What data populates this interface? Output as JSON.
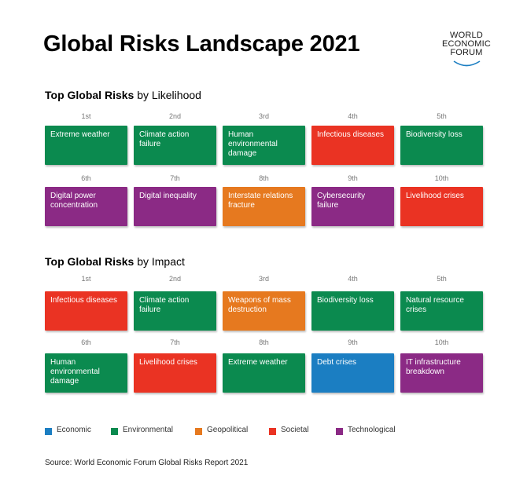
{
  "title": "Global Risks Landscape 2021",
  "logo": {
    "line1": "WORLD",
    "line2": "ECONOMIC",
    "line3": "FORUM"
  },
  "colors": {
    "Economic": "#1b7ec2",
    "Environmental": "#0b8a4f",
    "Geopolitical": "#e6791f",
    "Societal": "#ea3323",
    "Technological": "#8b2a85"
  },
  "likelihood": {
    "title_bold": "Top Global Risks",
    "title_rest": "by Likelihood",
    "ranks": [
      "1st",
      "2nd",
      "3rd",
      "4th",
      "5th",
      "6th",
      "7th",
      "8th",
      "9th",
      "10th"
    ],
    "risks": [
      {
        "label": "Extreme weather",
        "category": "Environmental"
      },
      {
        "label": "Climate action failure",
        "category": "Environmental"
      },
      {
        "label": "Human environmental damage",
        "category": "Environmental"
      },
      {
        "label": "Infectious diseases",
        "category": "Societal"
      },
      {
        "label": "Biodiversity loss",
        "category": "Environmental"
      },
      {
        "label": "Digital power concentration",
        "category": "Technological"
      },
      {
        "label": "Digital inequality",
        "category": "Technological"
      },
      {
        "label": "Interstate relations fracture",
        "category": "Geopolitical"
      },
      {
        "label": "Cybersecurity failure",
        "category": "Technological"
      },
      {
        "label": "Livelihood crises",
        "category": "Societal"
      }
    ]
  },
  "impact": {
    "title_bold": "Top Global Risks",
    "title_rest": "by Impact",
    "ranks": [
      "1st",
      "2nd",
      "3rd",
      "4th",
      "5th",
      "6th",
      "7th",
      "8th",
      "9th",
      "10th"
    ],
    "risks": [
      {
        "label": "Infectious diseases",
        "category": "Societal"
      },
      {
        "label": "Climate action failure",
        "category": "Environmental"
      },
      {
        "label": "Weapons of mass destruction",
        "category": "Geopolitical"
      },
      {
        "label": "Biodiversity loss",
        "category": "Environmental"
      },
      {
        "label": "Natural resource crises",
        "category": "Environmental"
      },
      {
        "label": "Human environmental damage",
        "category": "Environmental"
      },
      {
        "label": "Livelihood crises",
        "category": "Societal"
      },
      {
        "label": "Extreme weather",
        "category": "Environmental"
      },
      {
        "label": "Debt crises",
        "category": "Economic"
      },
      {
        "label": "IT infrastructure breakdown",
        "category": "Technological"
      }
    ]
  },
  "legend": [
    "Economic",
    "Environmental",
    "Geopolitical",
    "Societal",
    "Technological"
  ],
  "source": "Source: World Economic Forum Global Risks Report 2021"
}
